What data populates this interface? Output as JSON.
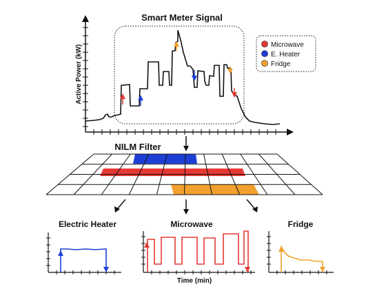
{
  "top_chart": {
    "title": "Smart Meter Signal",
    "ylabel": "Active Power (kW)"
  },
  "legend": {
    "items": [
      {
        "label": "Microwave",
        "color": "#e53935"
      },
      {
        "label": "E. Heater",
        "color": "#1e3fd6"
      },
      {
        "label": "Fridge",
        "color": "#f2a12e"
      }
    ]
  },
  "filter": {
    "label": "NILM Filter"
  },
  "outputs": {
    "heater_title": "Electric Heater",
    "microwave_title": "Microwave",
    "fridge_title": "Fridge",
    "xlabel": "Time (min)"
  },
  "colors": {
    "microwave": "#e53935",
    "heater": "#1e3fd6",
    "fridge": "#f2a12e",
    "signal": "#111111"
  }
}
